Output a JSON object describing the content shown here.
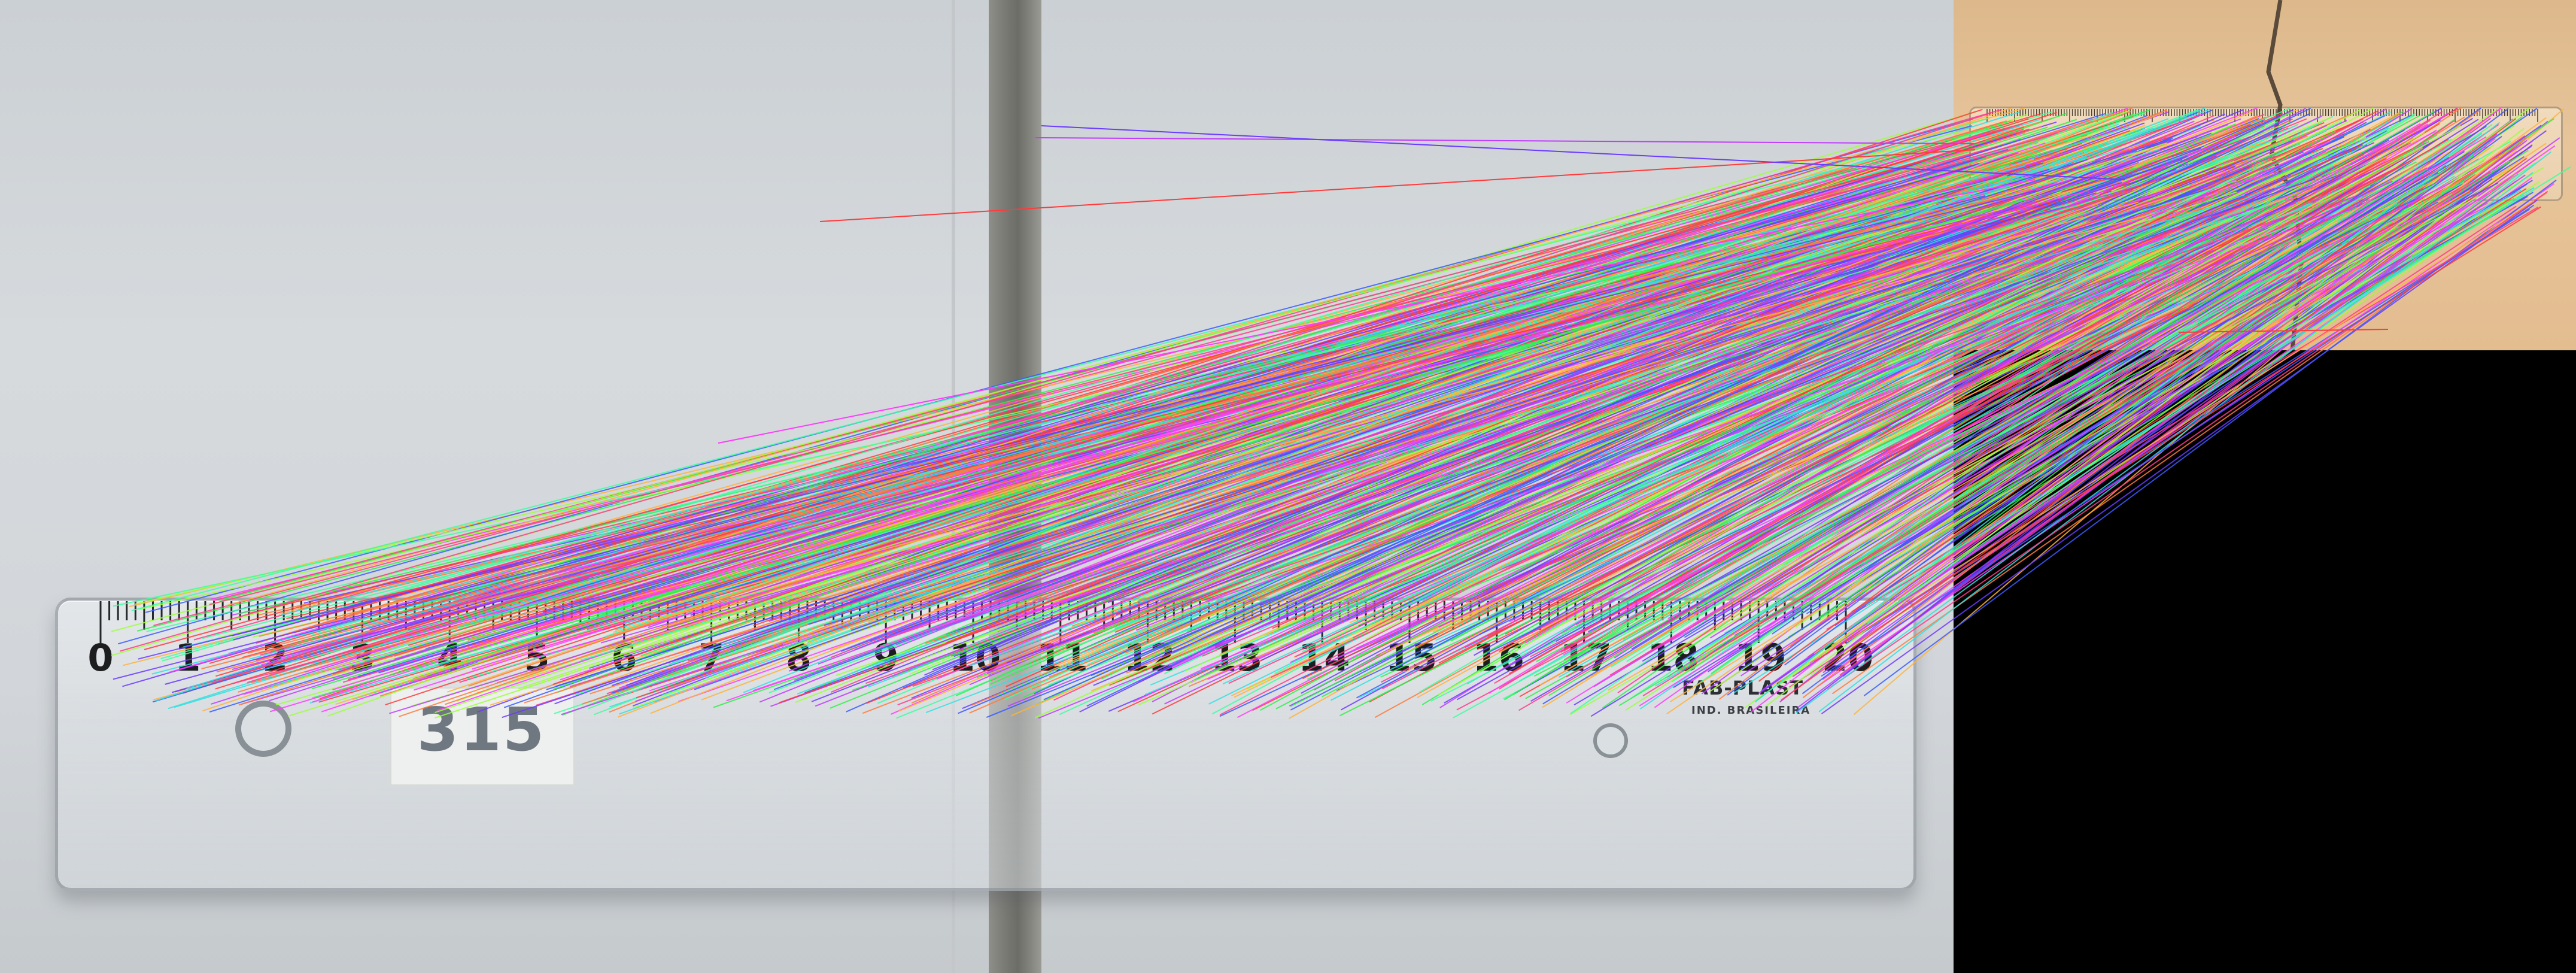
{
  "label_card": {
    "text": "315"
  },
  "ruler_numbers": [
    "0",
    "1",
    "2",
    "3",
    "4",
    "5",
    "6",
    "7",
    "8",
    "9",
    "10",
    "11",
    "12",
    "13",
    "14",
    "15",
    "16",
    "17",
    "18",
    "19",
    "20"
  ],
  "brand": {
    "name": "FAB-PLAST",
    "sub": "IND. BRASILEIRA"
  },
  "colors": {
    "tile": "#d2d6da",
    "grout": "#7b7b75",
    "wall": "#e3bd90",
    "background": "#000000"
  },
  "match_line_colors": [
    "#ff3b3b",
    "#2ff04a",
    "#3b5bff",
    "#ff3bff",
    "#ffb23b",
    "#2fe0e0",
    "#c03bff",
    "#9bff3b",
    "#ff7a3b",
    "#6b3bff",
    "#3bff9e",
    "#ff3b8a"
  ]
}
